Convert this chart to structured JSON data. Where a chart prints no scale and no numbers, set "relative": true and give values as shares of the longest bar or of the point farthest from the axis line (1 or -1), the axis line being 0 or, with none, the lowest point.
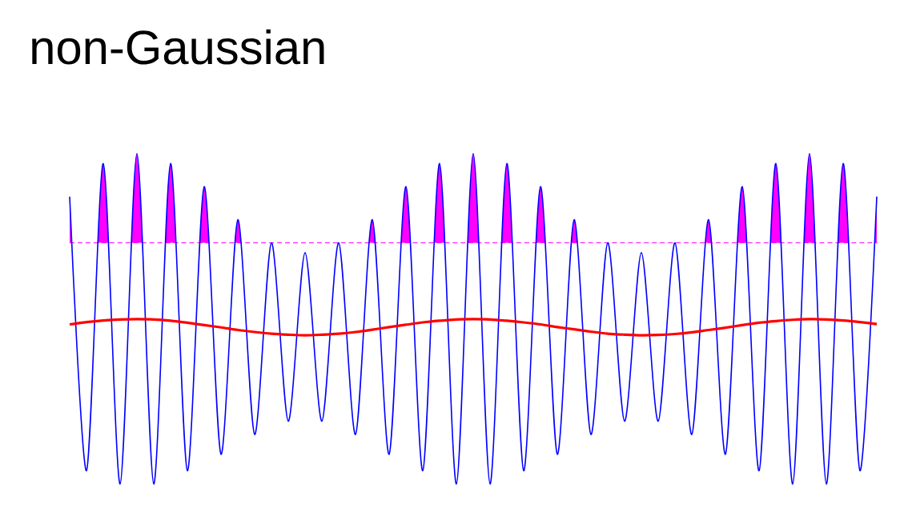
{
  "chart_data": {
    "type": "line",
    "title": "non-Gaussian",
    "relative": true,
    "categories": [
      null,
      null,
      null,
      null,
      null,
      null,
      null,
      null,
      null,
      null,
      null,
      null,
      null,
      null,
      null,
      null,
      null,
      null,
      null,
      null,
      null,
      null,
      null,
      null,
      null,
      null,
      null,
      null,
      null,
      null,
      null,
      null,
      null,
      null,
      null,
      null,
      null,
      null,
      null,
      null,
      null,
      null,
      null,
      null,
      null,
      null,
      null,
      null,
      null
    ],
    "series": [
      {
        "color": "#0000ff",
        "values": [
          0.87,
          0.04,
          0.97,
          0,
          1,
          0,
          0.97,
          0.04,
          0.9,
          0.09,
          0.8,
          0.15,
          0.73,
          0.19,
          0.7,
          0.19,
          0.73,
          0.15,
          0.8,
          0.09,
          0.9,
          0.04,
          0.97,
          0,
          1,
          0,
          0.97,
          0.04,
          0.9,
          0.09,
          0.8,
          0.15,
          0.73,
          0.19,
          0.7,
          0.19,
          0.73,
          0.15,
          0.8,
          0.09,
          0.9,
          0.04,
          0.97,
          0,
          1,
          0,
          0.97,
          0.04,
          0.87
        ]
      },
      {
        "color": "#ff0000",
        "values": [
          0.483,
          0.49,
          0.495,
          0.498,
          0.499,
          0.498,
          0.494,
          0.488,
          0.481,
          0.474,
          0.466,
          0.46,
          0.455,
          0.452,
          0.45,
          0.452,
          0.455,
          0.46,
          0.467,
          0.475,
          0.482,
          0.489,
          0.494,
          0.498,
          0.499,
          0.498,
          0.494,
          0.489,
          0.483,
          0.475,
          0.468,
          0.461,
          0.455,
          0.452,
          0.45,
          0.451,
          0.454,
          0.459,
          0.466,
          0.473,
          0.481,
          0.488,
          0.493,
          0.497,
          0.499,
          0.498,
          0.495,
          0.49,
          0.484
        ]
      }
    ],
    "ref_lines": [
      {
        "axis": "y",
        "value": 0.73,
        "color": "#ff00ff",
        "line_style": "dashed"
      }
    ],
    "marker": "none"
  }
}
